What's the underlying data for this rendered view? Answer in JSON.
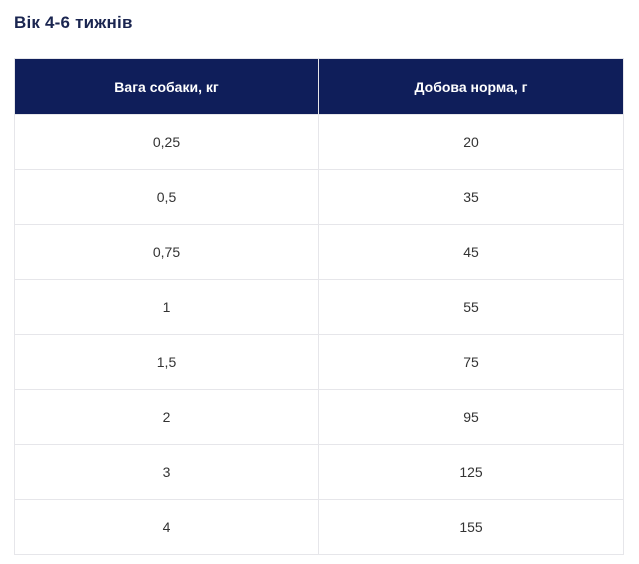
{
  "title": "Вік 4-6 тижнів",
  "table": {
    "headers": [
      "Вага собаки, кг",
      "Добова норма, г"
    ],
    "rows": [
      [
        "0,25",
        "20"
      ],
      [
        "0,5",
        "35"
      ],
      [
        "0,75",
        "45"
      ],
      [
        "1",
        "55"
      ],
      [
        "1,5",
        "75"
      ],
      [
        "2",
        "95"
      ],
      [
        "3",
        "125"
      ],
      [
        "4",
        "155"
      ]
    ]
  },
  "colors": {
    "header_bg": "#0f1e5a",
    "title_text": "#1a2550",
    "border": "#e6e6ea"
  }
}
